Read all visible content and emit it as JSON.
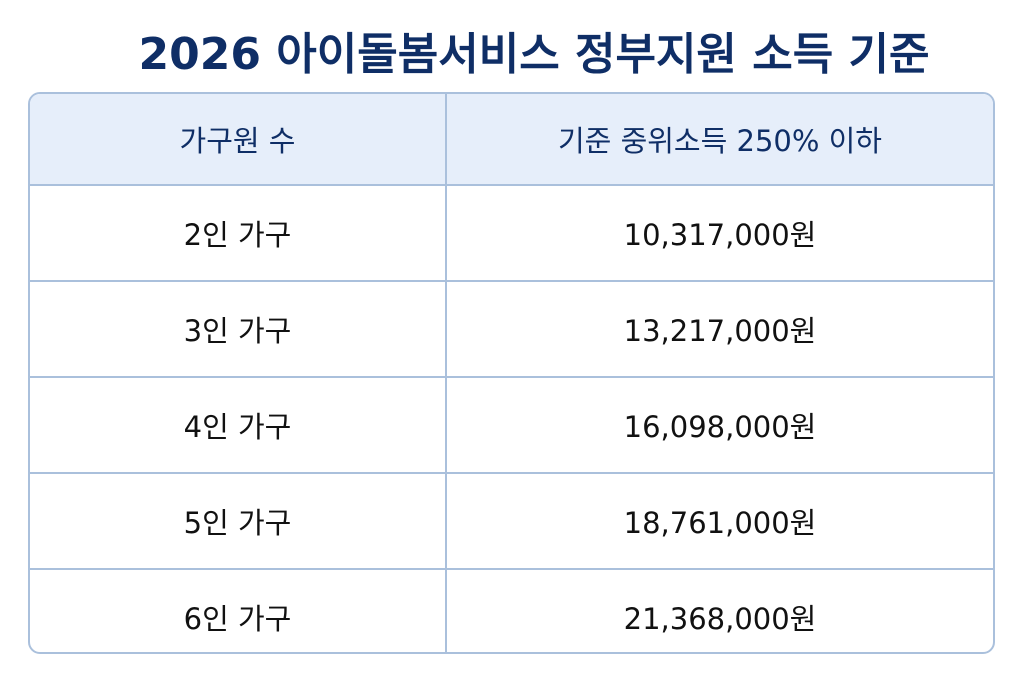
{
  "header": {
    "title": "2026 아이돌봄서비스 정부지원 소득 기준"
  },
  "table": {
    "columns": [
      "가구원 수",
      "기준 중위소득 250% 이하"
    ],
    "rows": [
      [
        "2인 가구",
        "10,317,000원"
      ],
      [
        "3인 가구",
        "13,217,000원"
      ],
      [
        "4인 가구",
        "16,098,000원"
      ],
      [
        "5인 가구",
        "18,761,000원"
      ],
      [
        "6인 가구",
        "21,368,000원"
      ]
    ]
  }
}
